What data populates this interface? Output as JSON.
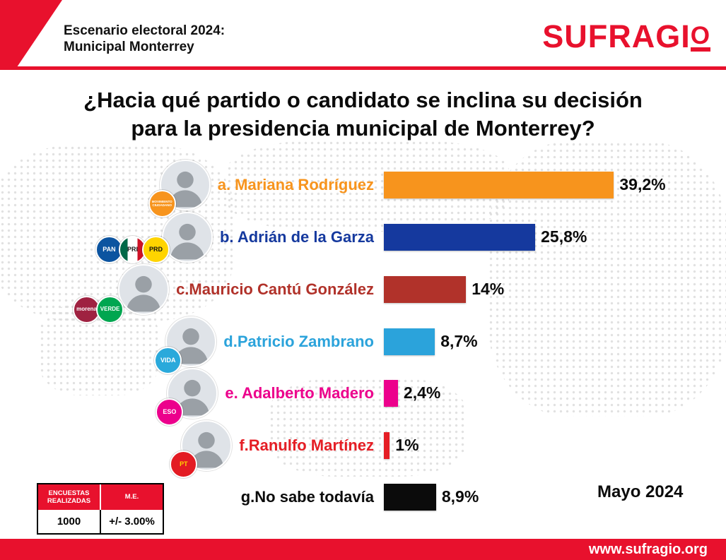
{
  "header": {
    "subtitle_line1": "Escenario electoral 2024:",
    "subtitle_line2": "Municipal Monterrey",
    "logo_text": "SUFRAGI",
    "logo_o": "O"
  },
  "title": {
    "line1": "¿Hacia qué partido o candidato se inclina su decisión",
    "line2": "para la presidencia municipal de Monterrey?"
  },
  "colors": {
    "brand_red": "#E8112D"
  },
  "chart_data": {
    "type": "bar",
    "orientation": "horizontal",
    "title": "¿Hacia qué partido o candidato se inclina su decisión para la presidencia municipal de Monterrey?",
    "categories": [
      "a. Mariana Rodríguez",
      "b. Adrián de la Garza",
      "c.Mauricio Cantú González",
      "d.Patricio Zambrano",
      "e. Adalberto Madero",
      "f.Ranulfo Martínez",
      "g.No sabe todavía"
    ],
    "values": [
      39.2,
      25.8,
      14,
      8.7,
      2.4,
      1,
      8.9
    ],
    "value_labels": [
      "39,2%",
      "25,8%",
      "14%",
      "8,7%",
      "2,4%",
      "1%",
      "8,9%"
    ],
    "bar_colors": [
      "#F7941D",
      "#15399E",
      "#B1322A",
      "#2BA3DB",
      "#EC008C",
      "#E51E25",
      "#0B0B0B"
    ],
    "xlim": [
      0,
      42
    ],
    "legend": "none",
    "grid": "off"
  },
  "rows": [
    {
      "label": "a. Mariana Rodríguez",
      "value": 39.2,
      "value_label": "39,2%",
      "color": "#F7941D",
      "parties": [
        {
          "name": "movimiento-ciudadano",
          "text": "MOVIMIENTO CIUDADANO",
          "bg": "#F7941D",
          "fg": "#ffffff",
          "fs": "4.5px"
        }
      ]
    },
    {
      "label": "b. Adrián de la Garza",
      "value": 25.8,
      "value_label": "25,8%",
      "color": "#15399E",
      "parties": [
        {
          "name": "pan",
          "text": "PAN",
          "bg": "#0C54A0",
          "fg": "#ffffff"
        },
        {
          "name": "pri",
          "text": "PRI",
          "bg": "linear-gradient(90deg,#006847 0 30%,#ffffff 30% 70%,#ce1126 70% 100%)",
          "fg": "#1a1a1a"
        },
        {
          "name": "prd",
          "text": "PRD",
          "bg": "#FFD400",
          "fg": "#111111"
        }
      ]
    },
    {
      "label": "c.Mauricio Cantú González",
      "value": 14,
      "value_label": "14%",
      "color": "#B1322A",
      "parties": [
        {
          "name": "morena",
          "text": "morena",
          "bg": "#9F2241",
          "fg": "#ffffff",
          "fs": "8px"
        },
        {
          "name": "partido-verde",
          "text": "VERDE",
          "bg": "#00A650",
          "fg": "#ffffff",
          "fs": "8px"
        }
      ]
    },
    {
      "label": "d.Patricio Zambrano",
      "value": 8.7,
      "value_label": "8,7%",
      "color": "#2BA3DB",
      "parties": [
        {
          "name": "vida",
          "text": "VIDA",
          "bg": "#2AA9DB",
          "fg": "#ffffff"
        }
      ]
    },
    {
      "label": "e. Adalberto Madero",
      "value": 2.4,
      "value_label": "2,4%",
      "color": "#EC008C",
      "parties": [
        {
          "name": "eso",
          "text": "ESO",
          "bg": "#EC008C",
          "fg": "#ffffff"
        }
      ]
    },
    {
      "label": "f.Ranulfo Martínez",
      "value": 1,
      "value_label": "1%",
      "color": "#E51E25",
      "parties": [
        {
          "name": "pt",
          "text": "PT",
          "bg": "#E31B23",
          "fg": "#FFD400"
        }
      ]
    },
    {
      "label": "g.No sabe todavía",
      "value": 8.9,
      "value_label": "8,9%",
      "color": "#0B0B0B",
      "parties": []
    }
  ],
  "stats_table": {
    "col1_header": "ENCUESTAS REALIZADAS",
    "col2_header": "M.E.",
    "col1_value": "1000",
    "col2_value": "+/- 3.00%"
  },
  "date_label": "Mayo 2024",
  "footer": {
    "url": "www.sufragio.org"
  }
}
